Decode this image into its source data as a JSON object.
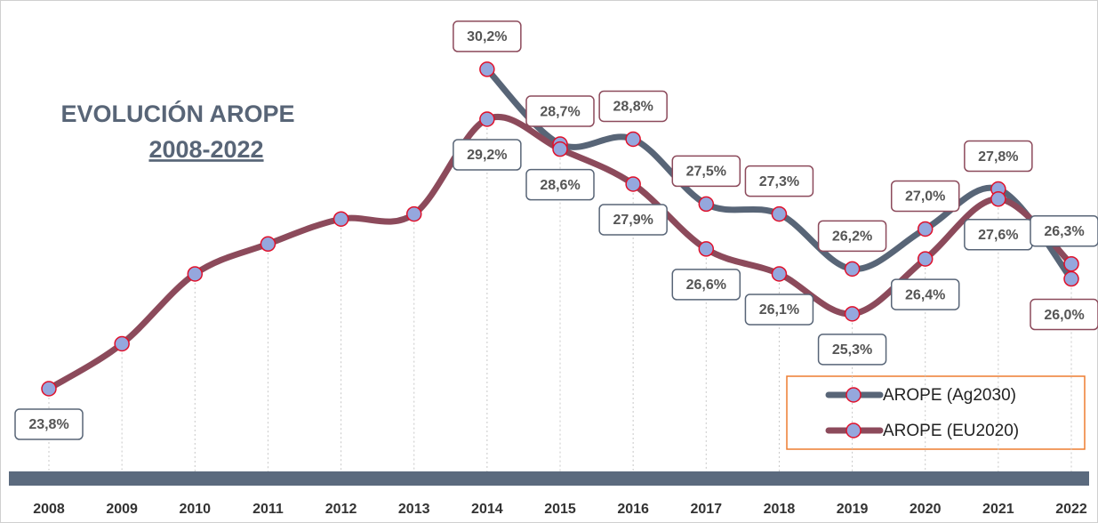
{
  "chart_data": {
    "type": "line",
    "title": "EVOLUCIÓN AROPE",
    "subtitle": "2008-2022",
    "categories": [
      "2008",
      "2009",
      "2010",
      "2011",
      "2012",
      "2013",
      "2014",
      "2015",
      "2016",
      "2017",
      "2018",
      "2019",
      "2020",
      "2021",
      "2022"
    ],
    "series": [
      {
        "name": "AROPE (Ag2030)",
        "color": "#586577",
        "values": [
          null,
          null,
          null,
          null,
          null,
          null,
          30.2,
          28.7,
          28.8,
          27.5,
          27.3,
          26.2,
          27.0,
          27.8,
          26.0
        ],
        "value_labels": [
          null,
          null,
          null,
          null,
          null,
          null,
          "30,2%",
          "28,7%",
          "28,8%",
          "27,5%",
          "27,3%",
          "26,2%",
          "27,0%",
          "27,8%",
          "26,0%"
        ]
      },
      {
        "name": "AROPE (EU2020)",
        "color": "#8c4a5b",
        "values": [
          23.8,
          24.7,
          26.1,
          26.7,
          27.2,
          27.3,
          29.2,
          28.6,
          27.9,
          26.6,
          26.1,
          25.3,
          26.4,
          27.6,
          26.3
        ],
        "value_labels": [
          "23,8%",
          null,
          null,
          null,
          null,
          null,
          "29,2%",
          "28,6%",
          "27,9%",
          "26,6%",
          "26,1%",
          "25,3%",
          "26,4%",
          "27,6%",
          "26,3%"
        ]
      }
    ],
    "ylim": [
      22,
      31
    ],
    "marker_fill": "#95a7dd",
    "marker_edge": "#e0102a",
    "legend": "bottom-right"
  }
}
